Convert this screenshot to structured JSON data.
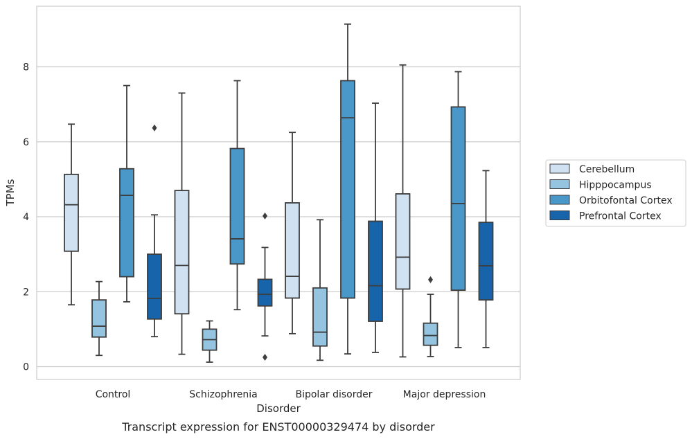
{
  "chart_data": {
    "type": "box",
    "caption": "Transcript expression for ENST00000329474 by disorder",
    "xlabel": "Disorder",
    "ylabel": "TPMs",
    "ylim": [
      -0.35,
      9.7
    ],
    "yticks": [
      0,
      2,
      4,
      6,
      8
    ],
    "grid": "horizontal",
    "legend_position": "right",
    "categories": [
      "Control",
      "Schizophrenia",
      "Bipolar disorder",
      "Major depression"
    ],
    "series": [
      {
        "name": "Cerebellum",
        "color": "#d0e1f2",
        "boxes": [
          {
            "whisker_low": 1.65,
            "q1": 3.08,
            "median": 4.32,
            "q3": 5.13,
            "whisker_high": 6.47,
            "outliers": []
          },
          {
            "whisker_low": 0.33,
            "q1": 1.41,
            "median": 2.7,
            "q3": 4.7,
            "whisker_high": 7.3,
            "outliers": []
          },
          {
            "whisker_low": 0.88,
            "q1": 1.83,
            "median": 2.41,
            "q3": 4.37,
            "whisker_high": 6.25,
            "outliers": []
          },
          {
            "whisker_low": 0.26,
            "q1": 2.07,
            "median": 2.92,
            "q3": 4.61,
            "whisker_high": 8.05,
            "outliers": []
          }
        ]
      },
      {
        "name": "Hipppocampus",
        "color": "#94c4df",
        "boxes": [
          {
            "whisker_low": 0.3,
            "q1": 0.79,
            "median": 1.08,
            "q3": 1.78,
            "whisker_high": 2.27,
            "outliers": []
          },
          {
            "whisker_low": 0.12,
            "q1": 0.44,
            "median": 0.72,
            "q3": 1.0,
            "whisker_high": 1.22,
            "outliers": []
          },
          {
            "whisker_low": 0.17,
            "q1": 0.55,
            "median": 0.92,
            "q3": 2.1,
            "whisker_high": 3.92,
            "outliers": []
          },
          {
            "whisker_low": 0.27,
            "q1": 0.57,
            "median": 0.83,
            "q3": 1.16,
            "whisker_high": 1.93,
            "outliers": [
              2.32
            ]
          }
        ]
      },
      {
        "name": "Orbitofontal Cortex",
        "color": "#4a98c9",
        "boxes": [
          {
            "whisker_low": 1.73,
            "q1": 2.4,
            "median": 4.57,
            "q3": 5.28,
            "whisker_high": 7.5,
            "outliers": []
          },
          {
            "whisker_low": 1.52,
            "q1": 2.74,
            "median": 3.41,
            "q3": 5.82,
            "whisker_high": 7.63,
            "outliers": []
          },
          {
            "whisker_low": 0.34,
            "q1": 1.83,
            "median": 6.64,
            "q3": 7.63,
            "whisker_high": 9.14,
            "outliers": []
          },
          {
            "whisker_low": 0.51,
            "q1": 2.04,
            "median": 4.35,
            "q3": 6.93,
            "whisker_high": 7.87,
            "outliers": []
          }
        ]
      },
      {
        "name": "Prefrontal Cortex",
        "color": "#1764ab",
        "boxes": [
          {
            "whisker_low": 0.8,
            "q1": 1.27,
            "median": 1.82,
            "q3": 3.0,
            "whisker_high": 4.05,
            "outliers": [
              6.37
            ]
          },
          {
            "whisker_low": 0.82,
            "q1": 1.62,
            "median": 1.93,
            "q3": 2.33,
            "whisker_high": 3.18,
            "outliers": [
              4.02,
              0.25
            ]
          },
          {
            "whisker_low": 0.38,
            "q1": 1.21,
            "median": 2.16,
            "q3": 3.88,
            "whisker_high": 7.03,
            "outliers": []
          },
          {
            "whisker_low": 0.51,
            "q1": 1.78,
            "median": 2.69,
            "q3": 3.85,
            "whisker_high": 5.23,
            "outliers": []
          }
        ]
      }
    ]
  }
}
